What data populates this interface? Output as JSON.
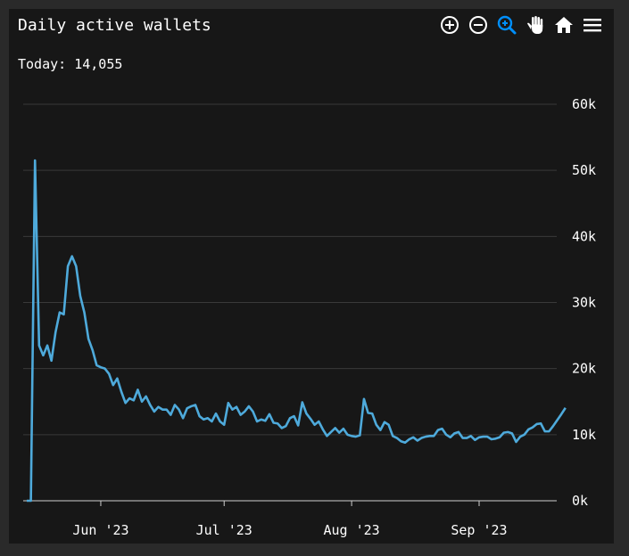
{
  "header": {
    "title": "Daily active wallets",
    "today_label": "Today:",
    "today_value": "14,055"
  },
  "toolbar": {
    "icons": [
      "zoom-in-icon",
      "zoom-out-icon",
      "zoom-selection-icon",
      "pan-icon",
      "reset-zoom-icon",
      "menu-icon"
    ],
    "active_color": "#008ffb",
    "icon_color": "#ffffff"
  },
  "chart_data": {
    "type": "line",
    "title": "Daily active wallets",
    "xlabel": "",
    "ylabel": "",
    "x_start": "2023-05-14",
    "x_tick_labels": [
      "Jun '23",
      "Jul '23",
      "Aug '23",
      "Sep '23"
    ],
    "x_tick_dates": [
      "2023-06-01",
      "2023-07-01",
      "2023-08-01",
      "2023-09-01"
    ],
    "y_tick_labels": [
      "0k",
      "10k",
      "20k",
      "30k",
      "40k",
      "50k",
      "60k"
    ],
    "ylim": [
      0,
      60000
    ],
    "y_axis_position": "right",
    "grid": true,
    "line_color": "#4eaadb",
    "series": [
      {
        "values": [
          0,
          0,
          51500,
          23500,
          22000,
          23500,
          21200,
          25500,
          28500,
          28200,
          35500,
          37000,
          35500,
          31000,
          28500,
          24500,
          22800,
          20500,
          20200,
          20000,
          19200,
          17500,
          18500,
          16500,
          14800,
          15500,
          15200,
          16800,
          15000,
          15800,
          14500,
          13500,
          14200,
          13800,
          13800,
          13000,
          14500,
          13800,
          12500,
          14000,
          14300,
          14500,
          12800,
          12300,
          12500,
          12000,
          13200,
          12000,
          11500,
          14800,
          13800,
          14200,
          13000,
          13500,
          14300,
          13500,
          12000,
          12300,
          12100,
          13100,
          11800,
          11700,
          11000,
          11300,
          12500,
          12800,
          11400,
          14900,
          13200,
          12400,
          11500,
          12000,
          10800,
          9800,
          10400,
          11000,
          10300,
          10900,
          10000,
          9800,
          9700,
          9900,
          15400,
          13300,
          13200,
          11500,
          10700,
          11900,
          11500,
          9800,
          9500,
          9000,
          8800,
          9300,
          9600,
          9100,
          9500,
          9700,
          9800,
          9800,
          10700,
          10900,
          10000,
          9600,
          10200,
          10400,
          9500,
          9500,
          9800,
          9200,
          9600,
          9700,
          9700,
          9300,
          9400,
          9600,
          10300,
          10400,
          10200,
          8900,
          9700,
          10000,
          10800,
          11100,
          11600,
          11700,
          10500,
          10500,
          11300,
          12200,
          13100,
          14055
        ]
      }
    ]
  }
}
